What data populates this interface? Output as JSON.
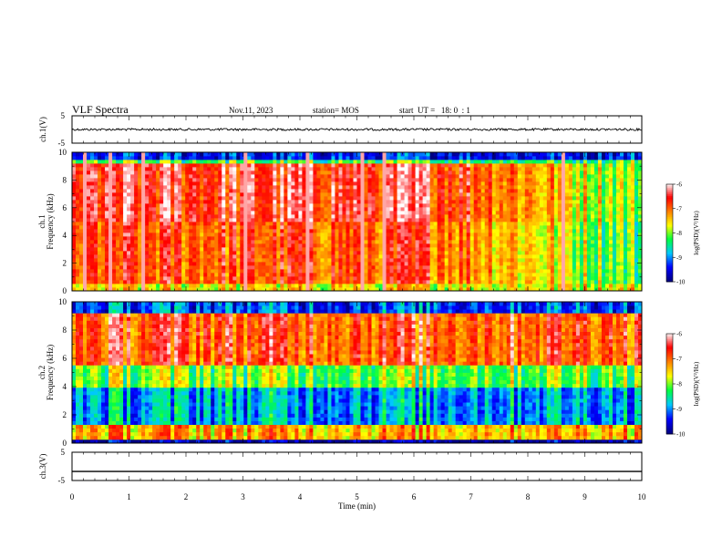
{
  "header": {
    "title": "VLF Spectra",
    "date": "Nov.11, 2023",
    "station": "station= MOS",
    "start_ut": "start  UT =   18: 0  : 1"
  },
  "chart_data": [
    {
      "type": "line",
      "panel": "ch1-waveform",
      "ylabel": "ch.1(V)",
      "yticks": [
        "5",
        "-5"
      ],
      "ylim": [
        -5,
        5
      ],
      "xlim": [
        0,
        10
      ],
      "series": [
        {
          "values": [
            0.0,
            0.0
          ]
        }
      ]
    },
    {
      "type": "heatmap",
      "panel": "ch1-spectrogram",
      "ylabel_line1": "ch.1",
      "ylabel_line2": "Frequency (kHz)",
      "ylim": [
        0,
        10
      ],
      "yticks": [
        0,
        2,
        4,
        6,
        8,
        10
      ],
      "xlim": [
        0,
        10
      ],
      "colorbar": {
        "label": "log(PSD)(V²/Hz)",
        "ticks": [
          -6,
          -7,
          -8,
          -9,
          -10
        ],
        "range": [
          -10,
          -6
        ]
      }
    },
    {
      "type": "heatmap",
      "panel": "ch2-spectrogram",
      "ylabel_line1": "ch.2",
      "ylabel_line2": "Frequency (kHz)",
      "ylim": [
        0,
        10
      ],
      "yticks": [
        0,
        2,
        4,
        6,
        8,
        10
      ],
      "xlim": [
        0,
        10
      ],
      "colorbar": {
        "label": "log(PSD)(V²/Hz)",
        "ticks": [
          -6,
          -7,
          -8,
          -9,
          -10
        ],
        "range": [
          -10,
          -6
        ]
      }
    },
    {
      "type": "line",
      "panel": "ch3-waveform",
      "ylabel": "ch.3(V)",
      "yticks": [
        "5",
        "-5"
      ],
      "ylim": [
        -5,
        5
      ],
      "xlim": [
        0,
        10
      ],
      "series": [
        {
          "values": [
            -1.8,
            -1.8
          ]
        }
      ]
    }
  ],
  "x_axis": {
    "label": "Time  (min)",
    "ticks": [
      "0",
      "1",
      "2",
      "3",
      "4",
      "5",
      "6",
      "7",
      "8",
      "9",
      "10"
    ]
  },
  "colors": {
    "scale": [
      "#000080",
      "#0000ff",
      "#00c8ff",
      "#00ff40",
      "#ffff00",
      "#ff8000",
      "#ff0000",
      "#ffffff"
    ]
  }
}
